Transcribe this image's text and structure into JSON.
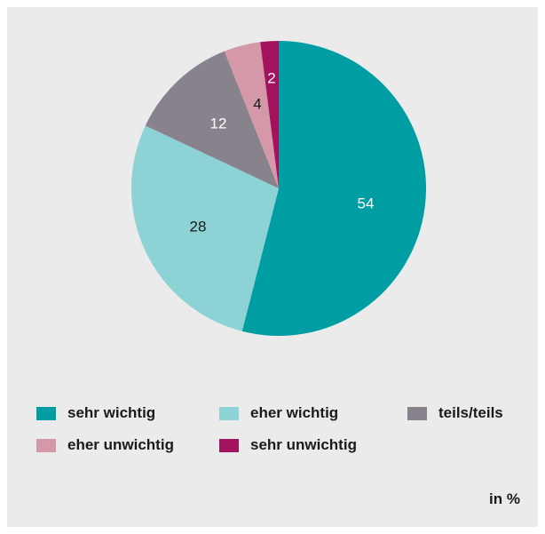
{
  "chart_data": {
    "type": "pie",
    "slices": [
      {
        "label": "sehr wichtig",
        "value": 54,
        "display": "54",
        "color": "#009ea3",
        "label_color": "#ffffff"
      },
      {
        "label": "eher wichtig",
        "value": 28,
        "display": "28",
        "color": "#8dd2d5",
        "label_color": "#1a1a1a"
      },
      {
        "label": "teils/teils",
        "value": 12,
        "display": "12",
        "color": "#87828c",
        "label_color": "#ffffff"
      },
      {
        "label": "eher unwichtig",
        "value": 4,
        "display": "4",
        "color": "#d598a8",
        "label_color": "#1a1a1a"
      },
      {
        "label": "sehr unwichtig",
        "value": 2,
        "display": "2",
        "color": "#a3125f",
        "label_color": "#ffffff"
      }
    ],
    "start_angle_deg": 0,
    "direction": "clockwise",
    "legend_position": "bottom",
    "unit": "in %"
  }
}
